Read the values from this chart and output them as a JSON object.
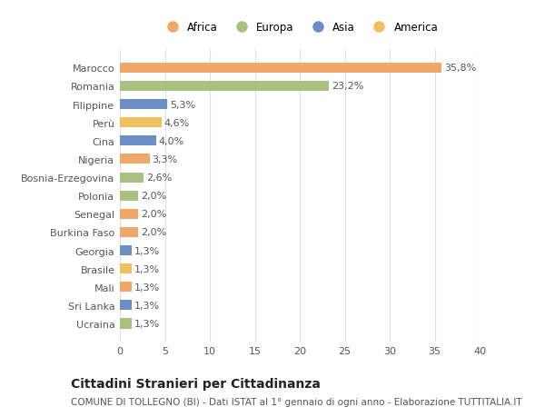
{
  "categories": [
    "Ucraina",
    "Sri Lanka",
    "Mali",
    "Brasile",
    "Georgia",
    "Burkina Faso",
    "Senegal",
    "Polonia",
    "Bosnia-Erzegovina",
    "Nigeria",
    "Cina",
    "Perù",
    "Filippine",
    "Romania",
    "Marocco"
  ],
  "values": [
    1.3,
    1.3,
    1.3,
    1.3,
    1.3,
    2.0,
    2.0,
    2.0,
    2.6,
    3.3,
    4.0,
    4.6,
    5.3,
    23.2,
    35.8
  ],
  "labels": [
    "1,3%",
    "1,3%",
    "1,3%",
    "1,3%",
    "1,3%",
    "2,0%",
    "2,0%",
    "2,0%",
    "2,6%",
    "3,3%",
    "4,0%",
    "4,6%",
    "5,3%",
    "23,2%",
    "35,8%"
  ],
  "colors": [
    "#a8c080",
    "#6b8ec7",
    "#f0a86a",
    "#f0c060",
    "#6b8ec7",
    "#f0a86a",
    "#f0a86a",
    "#a8c080",
    "#a8c080",
    "#f0a86a",
    "#6b8ec7",
    "#f0c060",
    "#6b8ec7",
    "#a8c080",
    "#f0a86a"
  ],
  "legend": [
    {
      "label": "Africa",
      "color": "#f0a86a"
    },
    {
      "label": "Europa",
      "color": "#a8c080"
    },
    {
      "label": "Asia",
      "color": "#6b8ec7"
    },
    {
      "label": "America",
      "color": "#f0c060"
    }
  ],
  "title": "Cittadini Stranieri per Cittadinanza",
  "subtitle": "COMUNE DI TOLLEGNO (BI) - Dati ISTAT al 1° gennaio di ogni anno - Elaborazione TUTTITALIA.IT",
  "xlim": [
    0,
    40
  ],
  "xticks": [
    0,
    5,
    10,
    15,
    20,
    25,
    30,
    35,
    40
  ],
  "background_color": "#ffffff",
  "plot_bg_color": "#ffffff",
  "grid_color": "#e0e0e0",
  "bar_height": 0.55,
  "title_fontsize": 10,
  "subtitle_fontsize": 7.5,
  "label_fontsize": 8,
  "tick_fontsize": 8,
  "legend_fontsize": 8.5
}
